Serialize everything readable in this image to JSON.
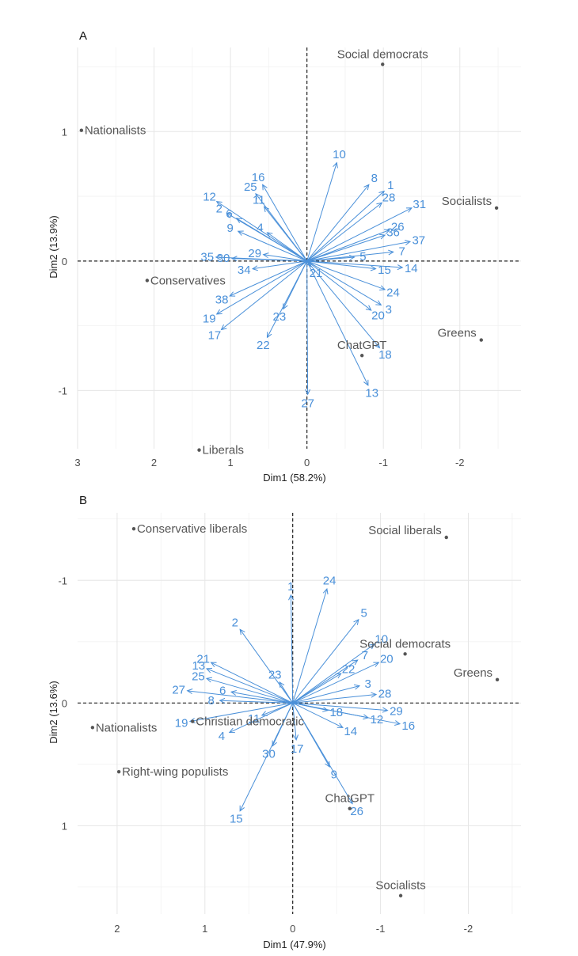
{
  "chart_data": [
    {
      "type": "scatter",
      "panel_label": "A",
      "xlabel": "Dim1 (58.2%)",
      "ylabel": "Dim2 (13.9%)",
      "xlim": [
        3.0,
        -2.8
      ],
      "ylim": [
        1.65,
        -1.45
      ],
      "x_reversed": true,
      "y_reversed": true,
      "x_ticks": [
        3,
        2,
        1,
        0,
        -1,
        -2
      ],
      "x_tick_labels": [
        "3",
        "2",
        "1",
        "0",
        "-1",
        "-2"
      ],
      "y_ticks": [
        -1,
        0,
        1
      ],
      "y_tick_labels": [
        "-1",
        "0",
        "1"
      ],
      "grid": true,
      "parties": [
        {
          "label": "Liberals",
          "x": 1.41,
          "y": -1.46
        },
        {
          "label": "ChatGPT",
          "x": -0.72,
          "y": -0.73
        },
        {
          "label": "Greens",
          "x": -2.28,
          "y": -0.61
        },
        {
          "label": "Conservatives",
          "x": 2.09,
          "y": -0.15
        },
        {
          "label": "Socialists",
          "x": -2.48,
          "y": 0.41
        },
        {
          "label": "Nationalists",
          "x": 2.95,
          "y": 1.01
        },
        {
          "label": "Social democrats",
          "x": -0.99,
          "y": 1.52
        }
      ],
      "variables": [
        {
          "label": "1",
          "x": -1.01,
          "y": 0.54
        },
        {
          "label": "2",
          "x": 1.05,
          "y": 0.37
        },
        {
          "label": "3",
          "x": -0.97,
          "y": -0.34
        },
        {
          "label": "4",
          "x": 0.52,
          "y": 0.22
        },
        {
          "label": "5",
          "x": -0.62,
          "y": 0.03
        },
        {
          "label": "6",
          "x": 0.92,
          "y": 0.33
        },
        {
          "label": "7",
          "x": -1.13,
          "y": 0.07
        },
        {
          "label": "8",
          "x": -0.81,
          "y": 0.59
        },
        {
          "label": "9",
          "x": 0.9,
          "y": 0.23
        },
        {
          "label": "10",
          "x": -0.39,
          "y": 0.76
        },
        {
          "label": "11",
          "x": 0.56,
          "y": 0.42
        },
        {
          "label": "12",
          "x": 1.18,
          "y": 0.46
        },
        {
          "label": "13",
          "x": -0.8,
          "y": -0.96
        },
        {
          "label": "14",
          "x": -1.25,
          "y": -0.05
        },
        {
          "label": "15",
          "x": -0.9,
          "y": -0.06
        },
        {
          "label": "16",
          "x": 0.58,
          "y": 0.59
        },
        {
          "label": "17",
          "x": 1.12,
          "y": -0.53
        },
        {
          "label": "18",
          "x": -0.95,
          "y": -0.67
        },
        {
          "label": "19",
          "x": 1.18,
          "y": -0.41
        },
        {
          "label": "20",
          "x": -0.84,
          "y": -0.38
        },
        {
          "label": "21",
          "x": -0.05,
          "y": -0.04
        },
        {
          "label": "22",
          "x": 0.52,
          "y": -0.59
        },
        {
          "label": "23",
          "x": 0.31,
          "y": -0.37
        },
        {
          "label": "24",
          "x": -1.02,
          "y": -0.22
        },
        {
          "label": "25",
          "x": 0.67,
          "y": 0.52
        },
        {
          "label": "26",
          "x": -1.08,
          "y": 0.24
        },
        {
          "label": "27",
          "x": -0.01,
          "y": -1.03
        },
        {
          "label": "28",
          "x": -0.98,
          "y": 0.45
        },
        {
          "label": "29",
          "x": 0.57,
          "y": 0.05
        },
        {
          "label": "30",
          "x": 0.98,
          "y": 0.02
        },
        {
          "label": "31",
          "x": -1.37,
          "y": 0.41
        },
        {
          "label": "34",
          "x": 0.71,
          "y": -0.06
        },
        {
          "label": "35",
          "x": 1.19,
          "y": 0.03
        },
        {
          "label": "36",
          "x": -1.02,
          "y": 0.2
        },
        {
          "label": "37",
          "x": -1.35,
          "y": 0.15
        },
        {
          "label": "38",
          "x": 1.01,
          "y": -0.27
        }
      ]
    },
    {
      "type": "scatter",
      "panel_label": "B",
      "xlabel": "Dim1 (47.9%)",
      "ylabel": "Dim2 (13.6%)",
      "xlim": [
        2.45,
        -2.6
      ],
      "ylim": [
        -1.55,
        1.72
      ],
      "x_reversed": true,
      "y_reversed": false,
      "x_ticks": [
        2,
        1,
        0,
        -1,
        -2
      ],
      "x_tick_labels": [
        "2",
        "1",
        "0",
        "-1",
        "-2"
      ],
      "y_ticks": [
        -1,
        0,
        1
      ],
      "y_tick_labels": [
        "-1",
        "0",
        "1"
      ],
      "grid": true,
      "parties": [
        {
          "label": "Socialists",
          "x": -1.23,
          "y": 1.57
        },
        {
          "label": "ChatGPT",
          "x": -0.65,
          "y": 0.86
        },
        {
          "label": "Right-wing populists",
          "x": 1.98,
          "y": 0.56
        },
        {
          "label": "Nationalists",
          "x": 2.28,
          "y": 0.2
        },
        {
          "label": "Christian democratic",
          "x": 1.14,
          "y": 0.15
        },
        {
          "label": "Greens",
          "x": -2.33,
          "y": -0.19
        },
        {
          "label": "Social democrats",
          "x": -1.28,
          "y": -0.4
        },
        {
          "label": "Conservative liberals",
          "x": 1.81,
          "y": -1.42
        },
        {
          "label": "Social liberals",
          "x": -1.75,
          "y": -1.35
        }
      ],
      "variables": [
        {
          "label": "15",
          "x": 0.6,
          "y": 0.88
        },
        {
          "label": "26",
          "x": -0.68,
          "y": 0.82
        },
        {
          "label": "9",
          "x": -0.42,
          "y": 0.52
        },
        {
          "label": "30",
          "x": 0.23,
          "y": 0.35
        },
        {
          "label": "17",
          "x": -0.04,
          "y": 0.3
        },
        {
          "label": "14",
          "x": -0.57,
          "y": 0.2
        },
        {
          "label": "16",
          "x": -1.22,
          "y": 0.17
        },
        {
          "label": "12",
          "x": -0.86,
          "y": 0.12
        },
        {
          "label": "18",
          "x": -0.4,
          "y": 0.06
        },
        {
          "label": "29",
          "x": -1.08,
          "y": 0.06
        },
        {
          "label": "4",
          "x": 0.72,
          "y": 0.24
        },
        {
          "label": "11",
          "x": 0.35,
          "y": 0.1
        },
        {
          "label": "19",
          "x": 1.17,
          "y": 0.15
        },
        {
          "label": "8",
          "x": 0.83,
          "y": -0.02
        },
        {
          "label": "27",
          "x": 1.2,
          "y": -0.1
        },
        {
          "label": "6",
          "x": 0.7,
          "y": -0.09
        },
        {
          "label": "25",
          "x": 0.98,
          "y": -0.2
        },
        {
          "label": "21",
          "x": 0.93,
          "y": -0.33
        },
        {
          "label": "13",
          "x": 0.98,
          "y": -0.28
        },
        {
          "label": "23",
          "x": 0.15,
          "y": -0.17
        },
        {
          "label": "2",
          "x": 0.6,
          "y": -0.6
        },
        {
          "label": "22",
          "x": -0.55,
          "y": -0.24
        },
        {
          "label": "3",
          "x": -0.76,
          "y": -0.14
        },
        {
          "label": "28",
          "x": -0.95,
          "y": -0.07
        },
        {
          "label": "20",
          "x": -0.98,
          "y": -0.33
        },
        {
          "label": "7",
          "x": -0.74,
          "y": -0.35
        },
        {
          "label": "10",
          "x": -0.93,
          "y": -0.48
        },
        {
          "label": "5",
          "x": -0.75,
          "y": -0.68
        },
        {
          "label": "24",
          "x": -0.39,
          "y": -0.93
        },
        {
          "label": "1",
          "x": 0.02,
          "y": -0.88
        }
      ]
    }
  ]
}
